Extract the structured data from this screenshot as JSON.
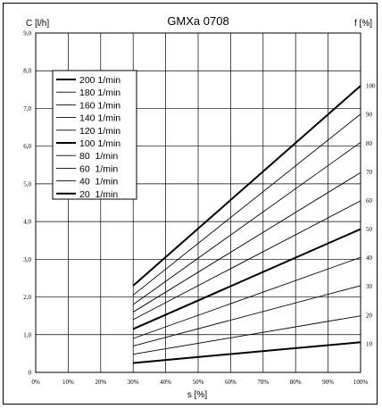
{
  "chart_data": {
    "type": "line",
    "title": "GMXa 0708",
    "xlabel": "s [%]",
    "ylabel_left": "C [l/h]",
    "ylabel_right": "f [%]",
    "x_ticks": [
      "0%",
      "10%",
      "20%",
      "30%",
      "40%",
      "50%",
      "60%",
      "70%",
      "80%",
      "90%",
      "100%"
    ],
    "y_ticks": [
      "0",
      "1,0",
      "2,0",
      "3,0",
      "4,0",
      "5,0",
      "6,0",
      "7,0",
      "8,0",
      "9,0"
    ],
    "y2_ticks": [
      "10",
      "20",
      "30",
      "40",
      "50",
      "60",
      "70",
      "80",
      "90",
      "100"
    ],
    "xlim": [
      0,
      100
    ],
    "ylim": [
      0,
      9
    ],
    "grid": true,
    "legend_position": "top-left",
    "series": [
      {
        "name": "200 1/min",
        "bold": true,
        "x": [
          30,
          100
        ],
        "y": [
          2.3,
          7.6
        ]
      },
      {
        "name": "180 1/min",
        "bold": false,
        "x": [
          30,
          100
        ],
        "y": [
          2.05,
          6.85
        ]
      },
      {
        "name": "160 1/min",
        "bold": false,
        "x": [
          30,
          100
        ],
        "y": [
          1.8,
          6.1
        ]
      },
      {
        "name": "140 1/min",
        "bold": false,
        "x": [
          30,
          100
        ],
        "y": [
          1.6,
          5.3
        ]
      },
      {
        "name": "120 1/min",
        "bold": false,
        "x": [
          30,
          100
        ],
        "y": [
          1.4,
          4.55
        ]
      },
      {
        "name": "100 1/min",
        "bold": true,
        "x": [
          30,
          100
        ],
        "y": [
          1.15,
          3.8
        ]
      },
      {
        "name": "80  1/min",
        "bold": false,
        "x": [
          30,
          100
        ],
        "y": [
          0.9,
          3.05
        ]
      },
      {
        "name": "60  1/min",
        "bold": false,
        "x": [
          30,
          100
        ],
        "y": [
          0.7,
          2.3
        ]
      },
      {
        "name": "40  1/min",
        "bold": false,
        "x": [
          30,
          100
        ],
        "y": [
          0.48,
          1.5
        ]
      },
      {
        "name": "20  1/min",
        "bold": true,
        "x": [
          30,
          100
        ],
        "y": [
          0.25,
          0.8
        ]
      }
    ]
  }
}
